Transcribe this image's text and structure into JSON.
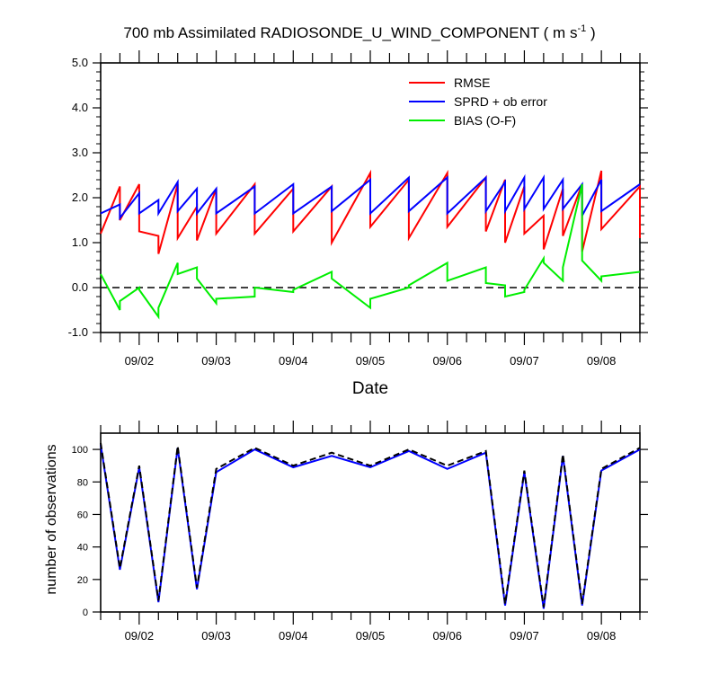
{
  "figure": {
    "title_main": "700 mb Assimilated RADIOSONDE_U_WIND_COMPONENT ( m s",
    "title_sup": "-1",
    "title_end": " )"
  },
  "chart_data": [
    {
      "type": "line",
      "xlabel": "Date",
      "ylabel": "",
      "ylim": [
        -1.0,
        5.0
      ],
      "yticks": [
        -1.0,
        0.0,
        1.0,
        2.0,
        3.0,
        4.0,
        5.0
      ],
      "xlim": [
        1.5,
        8.5
      ],
      "xtick_labels": [
        {
          "label": "09/02",
          "x": 2
        },
        {
          "label": "09/03",
          "x": 3
        },
        {
          "label": "09/04",
          "x": 4
        },
        {
          "label": "09/05",
          "x": 5
        },
        {
          "label": "09/06",
          "x": 6
        },
        {
          "label": "09/07",
          "x": 7
        },
        {
          "label": "09/08",
          "x": 8
        }
      ],
      "zero_line": 0.0,
      "legend": "top-right",
      "series": [
        {
          "name": "RMSE",
          "color": "#ff0000",
          "x": [
            1.5,
            1.75,
            1.75,
            2.0,
            2.0,
            2.25,
            2.25,
            2.5,
            2.5,
            2.75,
            2.75,
            3.0,
            3.0,
            3.5,
            3.5,
            4.0,
            4.0,
            4.5,
            4.5,
            5.0,
            5.0,
            5.5,
            5.5,
            6.0,
            6.0,
            6.5,
            6.5,
            6.75,
            6.75,
            7.0,
            7.0,
            7.25,
            7.25,
            7.5,
            7.5,
            7.75,
            7.75,
            8.0,
            8.0,
            8.5,
            8.5
          ],
          "y": [
            1.2,
            2.25,
            1.5,
            2.3,
            1.25,
            1.15,
            0.75,
            2.3,
            1.1,
            1.8,
            1.05,
            2.2,
            1.2,
            2.3,
            1.2,
            2.2,
            1.25,
            2.25,
            1.0,
            2.55,
            1.35,
            2.4,
            1.1,
            2.55,
            1.35,
            2.45,
            1.25,
            2.4,
            1.0,
            2.25,
            1.2,
            1.6,
            0.85,
            2.2,
            1.15,
            2.3,
            0.8,
            2.6,
            1.3,
            2.25,
            1.1
          ]
        },
        {
          "name": "SPRD + ob error",
          "color": "#0000ff",
          "x": [
            1.5,
            1.75,
            1.75,
            2.0,
            2.0,
            2.25,
            2.25,
            2.5,
            2.5,
            2.75,
            2.75,
            3.0,
            3.0,
            3.5,
            3.5,
            4.0,
            4.0,
            4.5,
            4.5,
            5.0,
            5.0,
            5.5,
            5.5,
            6.0,
            6.0,
            6.5,
            6.5,
            6.75,
            6.75,
            7.0,
            7.0,
            7.25,
            7.25,
            7.5,
            7.5,
            7.75,
            7.75,
            8.0,
            8.0,
            8.5
          ],
          "y": [
            1.65,
            1.85,
            1.55,
            2.1,
            1.65,
            1.95,
            1.65,
            2.35,
            1.7,
            2.2,
            1.65,
            2.2,
            1.65,
            2.25,
            1.65,
            2.3,
            1.65,
            2.25,
            1.7,
            2.4,
            1.65,
            2.45,
            1.7,
            2.45,
            1.65,
            2.45,
            1.7,
            2.35,
            1.7,
            2.45,
            1.75,
            2.45,
            1.75,
            2.4,
            1.75,
            2.3,
            1.6,
            2.4,
            1.7,
            2.3
          ]
        },
        {
          "name": "BIAS (O-F)",
          "color": "#00ee00",
          "x": [
            1.5,
            1.75,
            1.75,
            2.0,
            2.0,
            2.25,
            2.25,
            2.5,
            2.5,
            2.75,
            2.75,
            3.0,
            3.0,
            3.5,
            3.5,
            4.0,
            4.0,
            4.5,
            4.5,
            5.0,
            5.0,
            5.5,
            5.5,
            6.0,
            6.0,
            6.5,
            6.5,
            6.75,
            6.75,
            7.0,
            7.0,
            7.25,
            7.25,
            7.5,
            7.5,
            7.75,
            7.75,
            8.0,
            8.0,
            8.5
          ],
          "y": [
            0.3,
            -0.5,
            -0.3,
            0.0,
            -0.05,
            -0.65,
            -0.45,
            0.55,
            0.3,
            0.45,
            0.2,
            -0.35,
            -0.25,
            -0.2,
            0.0,
            -0.1,
            -0.05,
            0.35,
            0.2,
            -0.45,
            -0.25,
            0.0,
            0.05,
            0.55,
            0.15,
            0.45,
            0.1,
            0.05,
            -0.2,
            -0.1,
            -0.05,
            0.65,
            0.55,
            0.15,
            0.45,
            2.3,
            0.6,
            0.15,
            0.25,
            0.35
          ]
        }
      ]
    },
    {
      "type": "line",
      "xlabel": "",
      "ylabel": "number of observations",
      "ylim": [
        0,
        110
      ],
      "yticks": [
        0,
        20,
        40,
        60,
        80,
        100
      ],
      "xlim": [
        1.5,
        8.5
      ],
      "xtick_labels": [
        {
          "label": "09/02",
          "x": 2
        },
        {
          "label": "09/03",
          "x": 3
        },
        {
          "label": "09/04",
          "x": 4
        },
        {
          "label": "09/05",
          "x": 5
        },
        {
          "label": "09/06",
          "x": 6
        },
        {
          "label": "09/07",
          "x": 7
        },
        {
          "label": "09/08",
          "x": 8
        }
      ],
      "series": [
        {
          "name": "",
          "color": "#0000ff",
          "dash": false,
          "x": [
            1.5,
            1.75,
            2.0,
            2.25,
            2.5,
            2.75,
            3.0,
            3.5,
            4.0,
            4.5,
            5.0,
            5.5,
            6.0,
            6.5,
            6.75,
            7.0,
            7.25,
            7.5,
            7.75,
            8.0,
            8.5
          ],
          "y": [
            103,
            26,
            89,
            6,
            101,
            14,
            86,
            100,
            89,
            96,
            89,
            99,
            88,
            98,
            4,
            86,
            2,
            96,
            4,
            87,
            100
          ]
        },
        {
          "name": "",
          "color": "#000000",
          "dash": true,
          "x": [
            1.5,
            1.75,
            2.0,
            2.25,
            2.5,
            2.75,
            3.0,
            3.5,
            4.0,
            4.5,
            5.0,
            5.5,
            6.0,
            6.5,
            6.75,
            7.0,
            7.25,
            7.5,
            7.75,
            8.0,
            8.5
          ],
          "y": [
            104,
            27,
            90,
            7,
            102,
            15,
            88,
            101,
            90,
            98,
            90,
            100,
            90,
            99,
            5,
            87,
            3,
            97,
            5,
            88,
            101
          ]
        }
      ]
    }
  ]
}
